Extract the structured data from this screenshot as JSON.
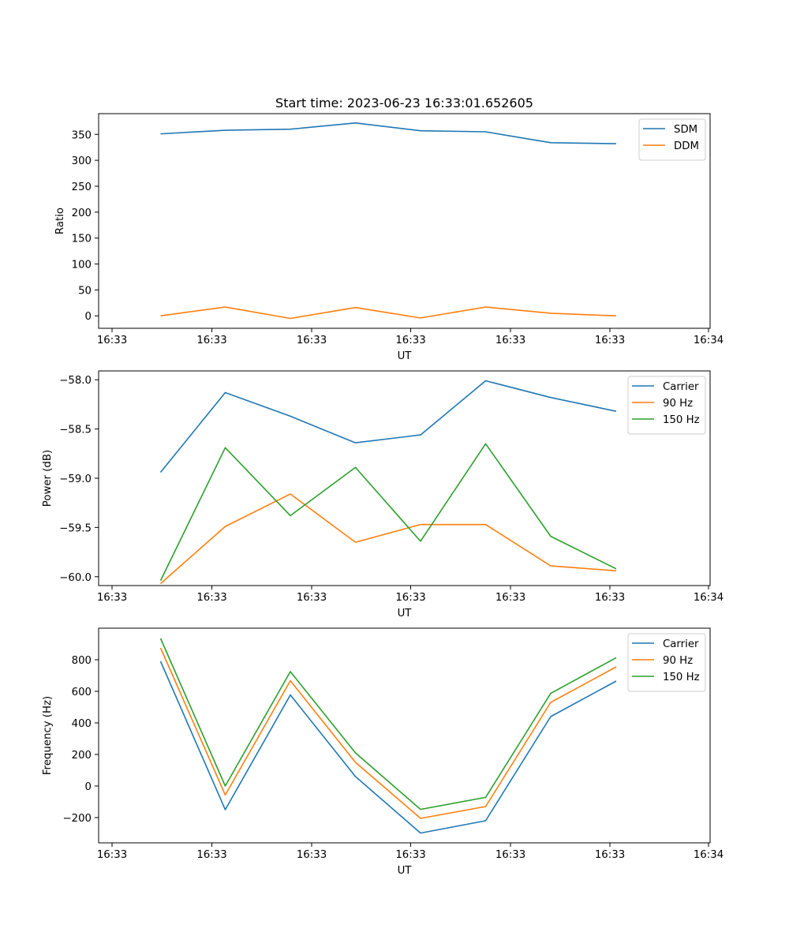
{
  "title": "Start time: 2023-06-23 16:33:01.652605",
  "colors": {
    "blue": "#1f77b4",
    "orange": "#ff7f0e",
    "green": "#2ca02c"
  },
  "chart_data": [
    {
      "type": "line",
      "ylabel": "Ratio",
      "xlabel": "UT",
      "x_tick_labels": [
        "16:33",
        "16:33",
        "16:33",
        "16:33",
        "16:33",
        "16:33",
        "16:34"
      ],
      "y_ticks": [
        0,
        50,
        100,
        150,
        200,
        250,
        300,
        350
      ],
      "ylim": [
        -24,
        390
      ],
      "legend_position": "upper right",
      "series": [
        {
          "name": "SDM",
          "color": "#1f77b4",
          "values": [
            351,
            358,
            360,
            372,
            357,
            355,
            334,
            332
          ]
        },
        {
          "name": "DDM",
          "color": "#ff7f0e",
          "values": [
            0,
            17,
            -5,
            16,
            -4,
            17,
            5,
            0
          ]
        }
      ]
    },
    {
      "type": "line",
      "ylabel": "Power (dB)",
      "xlabel": "UT",
      "x_tick_labels": [
        "16:33",
        "16:33",
        "16:33",
        "16:33",
        "16:33",
        "16:33",
        "16:34"
      ],
      "y_ticks": [
        -60.0,
        -59.5,
        -59.0,
        -58.5,
        -58.0
      ],
      "y_tick_labels": [
        "−60.0",
        "−59.5",
        "−59.0",
        "−58.5",
        "−58.0"
      ],
      "ylim": [
        -60.09,
        -57.91
      ],
      "legend_position": "upper right",
      "series": [
        {
          "name": "Carrier",
          "color": "#1f77b4",
          "values": [
            -58.94,
            -58.13,
            -58.37,
            -58.64,
            -58.56,
            -58.01,
            -58.18,
            -58.32
          ]
        },
        {
          "name": "90 Hz",
          "color": "#ff7f0e",
          "values": [
            -60.07,
            -59.49,
            -59.16,
            -59.65,
            -59.47,
            -59.47,
            -59.89,
            -59.94
          ]
        },
        {
          "name": "150 Hz",
          "color": "#2ca02c",
          "values": [
            -60.04,
            -58.69,
            -59.38,
            -58.89,
            -59.64,
            -58.65,
            -59.59,
            -59.92
          ]
        }
      ]
    },
    {
      "type": "line",
      "ylabel": "Frequency (Hz)",
      "xlabel": "UT",
      "x_tick_labels": [
        "16:33",
        "16:33",
        "16:33",
        "16:33",
        "16:33",
        "16:33",
        "16:34"
      ],
      "y_ticks": [
        -200,
        0,
        200,
        400,
        600,
        800
      ],
      "y_tick_labels": [
        "−200",
        "0",
        "200",
        "400",
        "600",
        "800"
      ],
      "ylim": [
        -360,
        1000
      ],
      "legend_position": "upper right",
      "series": [
        {
          "name": "Carrier",
          "color": "#1f77b4",
          "values": [
            790,
            -150,
            577,
            60,
            -298,
            -220,
            440,
            665
          ]
        },
        {
          "name": "90 Hz",
          "color": "#ff7f0e",
          "values": [
            875,
            -57,
            667,
            150,
            -205,
            -130,
            530,
            755
          ]
        },
        {
          "name": "150 Hz",
          "color": "#2ca02c",
          "values": [
            935,
            0,
            725,
            210,
            -148,
            -72,
            587,
            813
          ]
        }
      ]
    }
  ]
}
